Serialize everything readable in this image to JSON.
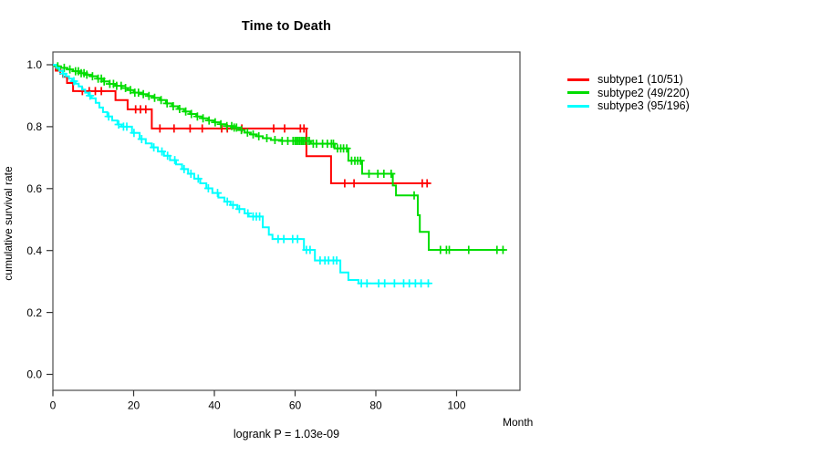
{
  "chart_data": {
    "type": "line",
    "subtype": "kaplan-meier-step-curves",
    "title": "Time to Death",
    "xlabel": "Month",
    "ylabel": "cumulative survival rate",
    "annotation": "logrank P = 1.03e-09",
    "xlim": [
      0,
      114
    ],
    "ylim": [
      0,
      1.0
    ],
    "xticks": [
      0,
      20,
      40,
      60,
      80,
      100
    ],
    "yticks": [
      0.0,
      0.2,
      0.4,
      0.6,
      0.8,
      1.0
    ],
    "grid": false,
    "legend_position": "right-outside",
    "censor_marker": "plus",
    "series": [
      {
        "name": "subtype1 (10/51)",
        "events": 10,
        "n": 51,
        "color": "#FF0000",
        "end_month": 93.3,
        "steps": [
          [
            0,
            1.0
          ],
          [
            0.7,
            0.981
          ],
          [
            2.5,
            0.961
          ],
          [
            3.5,
            0.941
          ],
          [
            5,
            0.915
          ],
          [
            15.5,
            0.886
          ],
          [
            18.5,
            0.856
          ],
          [
            24.5,
            0.794
          ],
          [
            62.8,
            0.705
          ],
          [
            68.9,
            0.617
          ]
        ],
        "censors": [
          1.8,
          7.3,
          9,
          10.5,
          12,
          20.5,
          21.7,
          23,
          26.5,
          30,
          34,
          37,
          41.8,
          43.2,
          46.8,
          54.7,
          57.4,
          61.3,
          62.2,
          72.3,
          74.6,
          91.5,
          92.7
        ]
      },
      {
        "name": "subtype2 (49/220)",
        "events": 49,
        "n": 220,
        "color": "#00DD00",
        "end_month": 112,
        "steps": [
          [
            0,
            1.0
          ],
          [
            0.8,
            0.995
          ],
          [
            2,
            0.99
          ],
          [
            3.5,
            0.985
          ],
          [
            5,
            0.979
          ],
          [
            6.5,
            0.973
          ],
          [
            8,
            0.968
          ],
          [
            9.5,
            0.963
          ],
          [
            11,
            0.955
          ],
          [
            12.5,
            0.946
          ],
          [
            14,
            0.938
          ],
          [
            15.5,
            0.932
          ],
          [
            17,
            0.925
          ],
          [
            18.5,
            0.918
          ],
          [
            20,
            0.91
          ],
          [
            22,
            0.905
          ],
          [
            23.5,
            0.899
          ],
          [
            25,
            0.893
          ],
          [
            26.5,
            0.886
          ],
          [
            28,
            0.875
          ],
          [
            29.5,
            0.866
          ],
          [
            31,
            0.857
          ],
          [
            32.5,
            0.849
          ],
          [
            34,
            0.841
          ],
          [
            35.5,
            0.833
          ],
          [
            37,
            0.827
          ],
          [
            38.5,
            0.82
          ],
          [
            40,
            0.814
          ],
          [
            41.5,
            0.808
          ],
          [
            43,
            0.802
          ],
          [
            44.5,
            0.797
          ],
          [
            46,
            0.789
          ],
          [
            47.5,
            0.781
          ],
          [
            49,
            0.775
          ],
          [
            50.5,
            0.769
          ],
          [
            52,
            0.763
          ],
          [
            54,
            0.757
          ],
          [
            56.5,
            0.754
          ],
          [
            63.9,
            0.745
          ],
          [
            69.8,
            0.73
          ],
          [
            73.2,
            0.69
          ],
          [
            76.6,
            0.648
          ],
          [
            84.2,
            0.61
          ],
          [
            85,
            0.578
          ],
          [
            90.4,
            0.514
          ],
          [
            90.9,
            0.46
          ],
          [
            93.1,
            0.402
          ]
        ],
        "censors": [
          1.2,
          2.8,
          4.2,
          5.6,
          6.3,
          7,
          7.7,
          8.4,
          9.8,
          11.2,
          12,
          12.7,
          14.1,
          15,
          15.8,
          16.9,
          18,
          19.2,
          20.3,
          21.2,
          22.4,
          23.8,
          25.2,
          26.8,
          28.3,
          29.8,
          31.4,
          32.9,
          34.3,
          35.8,
          37.2,
          38.7,
          40.2,
          41.6,
          43.1,
          44.3,
          44.9,
          45.5,
          46.7,
          48.2,
          49.6,
          51,
          53,
          55,
          56.8,
          58.2,
          59.5,
          60,
          60.4,
          60.8,
          61.2,
          61.6,
          62,
          62.4,
          63,
          63.5,
          64.5,
          65.3,
          66.8,
          68,
          69,
          69.5,
          70.5,
          71.3,
          72,
          72.8,
          74,
          74.8,
          75.5,
          76.2,
          78.3,
          80.5,
          82,
          83.8,
          89.5,
          96,
          97.5,
          98.2,
          103,
          110,
          111.5
        ]
      },
      {
        "name": "subtype3 (95/196)",
        "events": 95,
        "n": 196,
        "color": "#00FFFF",
        "end_month": 93.5,
        "steps": [
          [
            0,
            1.0
          ],
          [
            0.8,
            0.99
          ],
          [
            1.6,
            0.98
          ],
          [
            2.4,
            0.971
          ],
          [
            3.2,
            0.963
          ],
          [
            4,
            0.955
          ],
          [
            4.8,
            0.947
          ],
          [
            5.6,
            0.939
          ],
          [
            6.4,
            0.93
          ],
          [
            7.2,
            0.92
          ],
          [
            8,
            0.91
          ],
          [
            8.8,
            0.9
          ],
          [
            9.6,
            0.892
          ],
          [
            10.6,
            0.877
          ],
          [
            11.5,
            0.862
          ],
          [
            12.4,
            0.847
          ],
          [
            13.5,
            0.833
          ],
          [
            14.7,
            0.82
          ],
          [
            16,
            0.807
          ],
          [
            17,
            0.8
          ],
          [
            19.6,
            0.78
          ],
          [
            21.5,
            0.76
          ],
          [
            23,
            0.746
          ],
          [
            24.5,
            0.733
          ],
          [
            26,
            0.72
          ],
          [
            27.5,
            0.706
          ],
          [
            29,
            0.692
          ],
          [
            30.5,
            0.678
          ],
          [
            32,
            0.663
          ],
          [
            33.5,
            0.648
          ],
          [
            35,
            0.632
          ],
          [
            36.5,
            0.617
          ],
          [
            38,
            0.601
          ],
          [
            39.5,
            0.586
          ],
          [
            41,
            0.571
          ],
          [
            42.5,
            0.558
          ],
          [
            44,
            0.547
          ],
          [
            45.7,
            0.534
          ],
          [
            47.5,
            0.52
          ],
          [
            48.5,
            0.51
          ],
          [
            52,
            0.475
          ],
          [
            53.5,
            0.451
          ],
          [
            54.4,
            0.437
          ],
          [
            62.2,
            0.402
          ],
          [
            64.9,
            0.368
          ],
          [
            71.2,
            0.329
          ],
          [
            73.2,
            0.305
          ],
          [
            75.7,
            0.294
          ]
        ],
        "censors": [
          2.6,
          5.2,
          9.2,
          13.8,
          16.3,
          17.5,
          18.3,
          20.1,
          22,
          25,
          27,
          28.4,
          30.2,
          32.5,
          34.2,
          36,
          38.5,
          40.8,
          43.2,
          44.6,
          46.2,
          48.3,
          49.6,
          50.4,
          51.2,
          55.8,
          57.2,
          59.4,
          60.6,
          62.8,
          63.7,
          66.2,
          67.4,
          68.3,
          69.5,
          70.3,
          76.4,
          77.8,
          80.7,
          82.2,
          84.6,
          86.9,
          88.3,
          89.8,
          91.2,
          93
        ]
      }
    ]
  }
}
